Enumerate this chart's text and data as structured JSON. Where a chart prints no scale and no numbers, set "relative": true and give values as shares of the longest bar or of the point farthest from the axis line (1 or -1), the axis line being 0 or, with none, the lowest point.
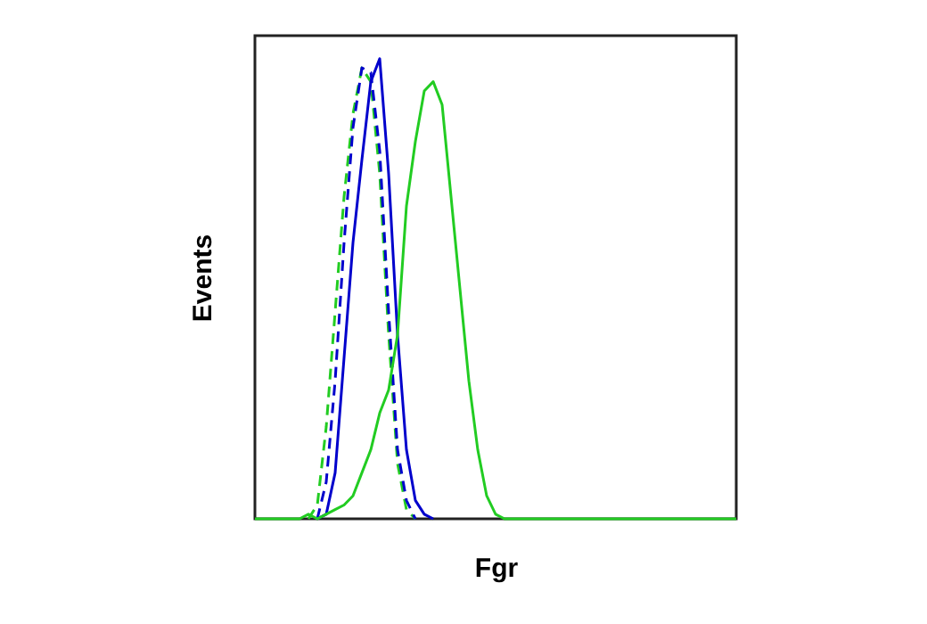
{
  "chart_data": {
    "type": "line",
    "xlabel": "Fgr",
    "ylabel": "Events",
    "relative": true,
    "grid": false,
    "tick_labels": false,
    "categories": [
      null,
      null,
      null,
      null,
      null,
      null,
      null,
      null,
      null,
      null,
      null,
      null,
      null,
      null,
      null,
      null,
      null,
      null,
      null,
      null,
      null,
      null,
      null,
      null,
      null,
      null,
      null,
      null,
      null,
      null,
      null,
      null,
      null,
      null,
      null,
      null,
      null,
      null,
      null,
      null,
      null,
      null,
      null,
      null,
      null,
      null,
      null,
      null,
      null,
      null,
      null,
      null,
      null,
      null,
      null
    ],
    "series": [
      {
        "color": "#22cc22",
        "line_style": "dashed",
        "values": [
          null,
          null,
          null,
          null,
          null,
          null,
          0,
          0.03,
          0.2,
          0.45,
          0.7,
          0.88,
          0.98,
          0.95,
          0.75,
          0.4,
          0.12,
          0.02,
          0,
          null,
          null,
          null,
          null,
          null,
          null,
          null,
          null,
          null,
          null,
          null,
          null,
          null,
          null,
          null,
          null,
          null,
          null,
          null,
          null,
          null,
          null,
          null,
          null,
          null,
          null,
          null,
          null,
          null,
          null,
          null,
          null,
          null,
          null,
          null,
          null
        ]
      },
      {
        "color": "#0000cc",
        "line_style": "dashed",
        "values": [
          null,
          null,
          null,
          null,
          null,
          null,
          null,
          0,
          0.08,
          0.3,
          0.6,
          0.85,
          0.98,
          0.97,
          0.8,
          0.45,
          0.15,
          0.04,
          0,
          null,
          null,
          null,
          null,
          null,
          null,
          null,
          null,
          null,
          null,
          null,
          null,
          null,
          null,
          null,
          null,
          null,
          null,
          null,
          null,
          null,
          null,
          null,
          null,
          null,
          null,
          null,
          null,
          null,
          null,
          null,
          null,
          null,
          null,
          null,
          null
        ]
      },
      {
        "color": "#0000cc",
        "line_style": "solid",
        "values": [
          null,
          null,
          null,
          null,
          null,
          null,
          null,
          0,
          0.01,
          0.1,
          0.35,
          0.6,
          0.78,
          0.95,
          1.0,
          0.75,
          0.4,
          0.15,
          0.04,
          0.01,
          0,
          null,
          null,
          null,
          null,
          null,
          null,
          null,
          null,
          null,
          null,
          null,
          null,
          null,
          null,
          null,
          null,
          null,
          null,
          null,
          null,
          null,
          null,
          null,
          null,
          null,
          null,
          null,
          null,
          null,
          null,
          null,
          null,
          null,
          null
        ]
      },
      {
        "color": "#22cc22",
        "line_style": "solid",
        "values": [
          0,
          0,
          0,
          0,
          0,
          0,
          0.01,
          0,
          0.01,
          0.02,
          0.03,
          0.05,
          0.1,
          0.15,
          0.23,
          0.28,
          0.4,
          0.68,
          0.82,
          0.93,
          0.95,
          0.9,
          0.7,
          0.5,
          0.3,
          0.15,
          0.05,
          0.01,
          0,
          0,
          0,
          0,
          0,
          0,
          0,
          0,
          0,
          0,
          0,
          0,
          0,
          0,
          0,
          0,
          0,
          0,
          0,
          0,
          0,
          0,
          0,
          0,
          0,
          0,
          0
        ]
      }
    ]
  }
}
